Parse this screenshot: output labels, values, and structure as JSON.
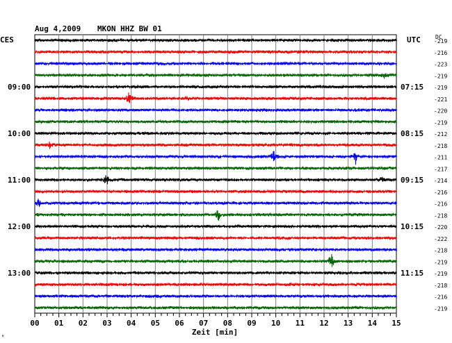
{
  "header": {
    "date": "Aug 4,2009",
    "station": "MKON HHZ BW 01",
    "left_tz": "CES",
    "right_tz": "UTC",
    "dc_label": "DC"
  },
  "chart_data": {
    "type": "line",
    "title": "Aug 4,2009   MKON HHZ BW 01",
    "xlabel": "Zeit [min]",
    "xlim": [
      0,
      15
    ],
    "x_ticks": [
      "00",
      "01",
      "02",
      "03",
      "04",
      "05",
      "06",
      "07",
      "08",
      "09",
      "10",
      "11",
      "12",
      "13",
      "14",
      "15"
    ],
    "grid": true,
    "row_colors": [
      "#000000",
      "#ee0000",
      "#0000ee",
      "#006400"
    ],
    "left_labels": [
      {
        "row": 4,
        "text": "09:00"
      },
      {
        "row": 8,
        "text": "10:00"
      },
      {
        "row": 12,
        "text": "11:00"
      },
      {
        "row": 16,
        "text": "12:00"
      },
      {
        "row": 20,
        "text": "13:00"
      }
    ],
    "right_labels": [
      {
        "row": 4,
        "text": "07:15"
      },
      {
        "row": 8,
        "text": "08:15"
      },
      {
        "row": 12,
        "text": "09:15"
      },
      {
        "row": 16,
        "text": "10:15"
      },
      {
        "row": 20,
        "text": "11:15"
      }
    ],
    "dc_values": [
      "-219",
      "-216",
      "-223",
      "-219",
      "-219",
      "-221",
      "-220",
      "-219",
      "-212",
      "-218",
      "-211",
      "-217",
      "-214",
      "-216",
      "-216",
      "-218",
      "-220",
      "-222",
      "-218",
      "-219",
      "-219",
      "-218",
      "-216",
      "-219"
    ],
    "events": [
      {
        "row": 3,
        "x": 14.5,
        "amp": 4
      },
      {
        "row": 5,
        "x": 3.9,
        "amp": 9
      },
      {
        "row": 5,
        "x": 6.3,
        "amp": 3
      },
      {
        "row": 9,
        "x": 0.6,
        "amp": 6
      },
      {
        "row": 10,
        "x": 9.9,
        "amp": 9
      },
      {
        "row": 10,
        "x": 13.3,
        "amp": 11
      },
      {
        "row": 12,
        "x": 2.95,
        "amp": 8
      },
      {
        "row": 12,
        "x": 14.4,
        "amp": 5
      },
      {
        "row": 14,
        "x": 0.15,
        "amp": 6
      },
      {
        "row": 15,
        "x": 7.6,
        "amp": 9
      },
      {
        "row": 19,
        "x": 12.3,
        "amp": 14
      }
    ]
  },
  "footer": {
    "corner_mark": "ᴿ"
  }
}
